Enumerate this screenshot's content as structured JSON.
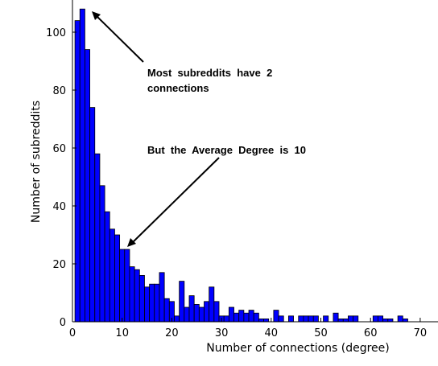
{
  "chart_data": {
    "type": "bar",
    "subtype": "histogram",
    "xlabel": "Number of connections (degree)",
    "ylabel": "Number of subreddits",
    "xlim": [
      0,
      73
    ],
    "ylim": [
      0,
      110
    ],
    "xticks": [
      0,
      10,
      20,
      30,
      40,
      50,
      60,
      70
    ],
    "yticks": [
      0,
      20,
      40,
      60,
      80,
      100
    ],
    "bin_width": 1,
    "bar_color": "#0000ff",
    "bar_edge_color": "#000000",
    "x": [
      1,
      2,
      3,
      4,
      5,
      6,
      7,
      8,
      9,
      10,
      11,
      12,
      13,
      14,
      15,
      16,
      17,
      18,
      19,
      20,
      21,
      22,
      23,
      24,
      25,
      26,
      27,
      28,
      29,
      30,
      31,
      32,
      33,
      34,
      35,
      36,
      37,
      38,
      39,
      40,
      41,
      42,
      43,
      44,
      45,
      46,
      47,
      48,
      49,
      50,
      51,
      52,
      53,
      54,
      55,
      56,
      57,
      58,
      59,
      60,
      61,
      62,
      63,
      64,
      65,
      66,
      67,
      68
    ],
    "values": [
      104,
      108,
      94,
      74,
      58,
      47,
      38,
      32,
      30,
      25,
      25,
      19,
      18,
      16,
      12,
      13,
      13,
      17,
      8,
      7,
      2,
      14,
      5,
      9,
      6,
      5,
      7,
      12,
      7,
      2,
      2,
      5,
      3,
      4,
      3,
      4,
      3,
      1,
      1,
      0,
      4,
      2,
      0,
      2,
      0,
      2,
      2,
      2,
      2,
      0,
      2,
      0,
      3,
      1,
      1,
      2,
      2,
      0,
      0,
      0,
      2,
      2,
      1,
      1,
      0,
      2,
      1,
      0
    ],
    "annotations": [
      {
        "text_lines": [
          "Most  subreddits  have  2",
          "connections"
        ],
        "points_to": [
          2.2,
          107
        ]
      },
      {
        "text_lines": [
          "But  the  Average  Degree  is  10"
        ],
        "points_to": [
          10.8,
          26
        ]
      }
    ]
  }
}
